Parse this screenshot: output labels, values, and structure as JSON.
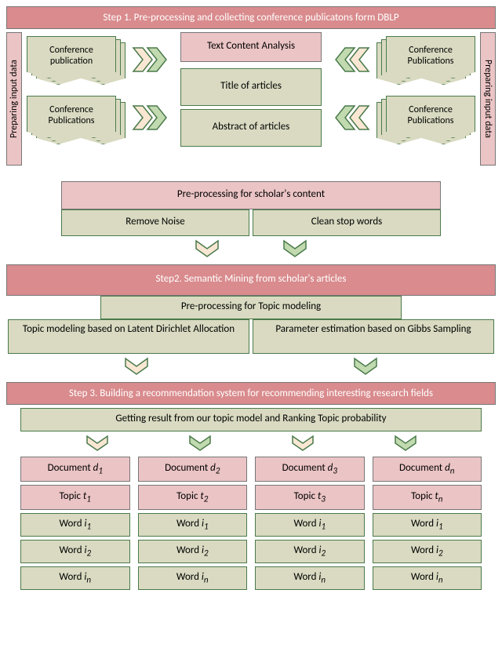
{
  "colors": {
    "pink_header": "#d98b8d",
    "pink_light": "#ebc4c5",
    "olive_light": "#d9dac1",
    "olive_dark": "#c5c7a8",
    "chevron_cream": "#f9e7d4",
    "chevron_green": "#c2dab0",
    "border_green": "#4a7a4a",
    "text": "#333333"
  },
  "fonts": {
    "body_size": 13,
    "small_size": 12
  },
  "step1": {
    "header": "Step 1. Pre-processing and collecting conference publicatons form DBLP",
    "side_label": "Preparing input data",
    "docs_left": [
      "Conference publication",
      "Conference Publications"
    ],
    "docs_right": [
      "Conference Publications",
      "Conference Publications"
    ],
    "center_top_pink": "Text Content Analysis",
    "center_titles": [
      "Title of articles",
      "Abstract of articles"
    ],
    "preproc_header": "Pre-processing for scholar's content",
    "preproc_items": [
      "Remove Noise",
      "Clean stop words"
    ]
  },
  "step2": {
    "header": "Step2. Semantic Mining from scholar's articles",
    "sub_header": "Pre-processing for Topic modeling",
    "items": [
      "Topic modeling based on Latent Dirichlet Allocation",
      "Parameter estimation based on Gibbs Sampling"
    ]
  },
  "step3": {
    "header": "Step 3. Building a recommendation system for recommending interesting research fields",
    "sub_header": "Getting result from our topic model and Ranking Topic probability",
    "columns": [
      {
        "doc_prefix": "Document ",
        "doc_var": "d",
        "doc_sub": "1",
        "topic_prefix": "Topic ",
        "topic_var": "t",
        "topic_sub": "1",
        "words": [
          [
            "Word ",
            "i",
            "1"
          ],
          [
            "Word ",
            "i",
            "2"
          ],
          [
            "Word ",
            "i",
            "n"
          ]
        ]
      },
      {
        "doc_prefix": "Document ",
        "doc_var": "d",
        "doc_sub": "2",
        "topic_prefix": "Topic ",
        "topic_var": "t",
        "topic_sub": "2",
        "words": [
          [
            "Word ",
            "i",
            "1"
          ],
          [
            "Word ",
            "i",
            "2"
          ],
          [
            "Word ",
            "i",
            "n"
          ]
        ]
      },
      {
        "doc_prefix": "Document ",
        "doc_var": "d",
        "doc_sub": "3",
        "topic_prefix": "Topic ",
        "topic_var": "t",
        "topic_sub": "3",
        "words": [
          [
            "Word ",
            "i",
            "1"
          ],
          [
            "Word ",
            "i",
            "2"
          ],
          [
            "Word ",
            "i",
            "n"
          ]
        ]
      },
      {
        "doc_prefix": "Document ",
        "doc_var": "d",
        "doc_sub": "n",
        "topic_prefix": "Topic ",
        "topic_var": "t",
        "topic_sub": "n",
        "words": [
          [
            "Word ",
            "i",
            "1"
          ],
          [
            "Word ",
            "i",
            "2"
          ],
          [
            "Word ",
            "i",
            "n"
          ]
        ]
      }
    ]
  }
}
